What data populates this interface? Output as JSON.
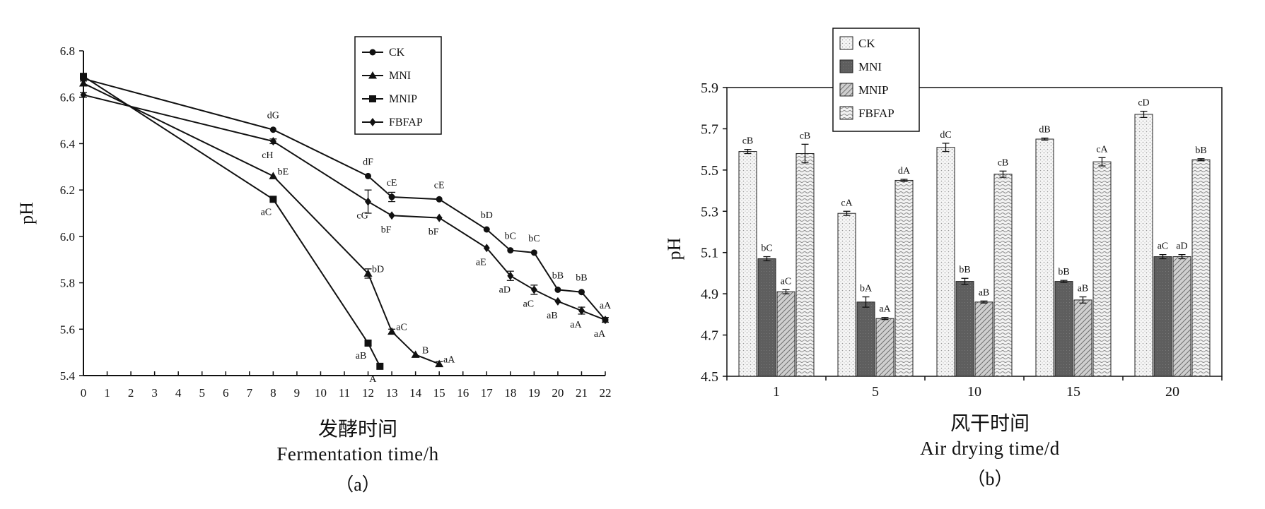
{
  "chart_data": [
    {
      "type": "line",
      "ylabel": "pH",
      "xlabel_zh": "发酵时间",
      "xlabel_en": "Fermentation time/h",
      "sublabel": "（a）",
      "xlim": [
        0,
        22
      ],
      "ylim": [
        5.4,
        6.8
      ],
      "yticks": [
        "5.4",
        "5.6",
        "5.8",
        "6.0",
        "6.2",
        "6.4",
        "6.6",
        "6.8"
      ],
      "xticks": [
        "0",
        "1",
        "2",
        "3",
        "4",
        "5",
        "6",
        "7",
        "8",
        "9",
        "10",
        "11",
        "12",
        "13",
        "14",
        "15",
        "16",
        "17",
        "18",
        "19",
        "20",
        "21",
        "22"
      ],
      "legend_position": "top-center",
      "series": [
        {
          "name": "CK",
          "marker": "circle",
          "x": [
            0,
            8,
            12,
            13,
            15,
            17,
            18,
            19,
            20,
            21,
            22
          ],
          "y": [
            6.68,
            6.46,
            6.26,
            6.17,
            6.16,
            6.03,
            5.94,
            5.93,
            5.77,
            5.76,
            5.64
          ],
          "err": [
            0.01,
            0.005,
            0.005,
            0.02,
            0.005,
            0.005,
            0.005,
            0.005,
            0.005,
            0.005,
            0.01
          ],
          "labels": [
            "",
            "dG",
            "dF",
            "cE",
            "cE",
            "bD",
            "bC",
            "bC",
            "bB",
            "bB",
            "aA"
          ]
        },
        {
          "name": "MNI",
          "marker": "triangle",
          "x": [
            0,
            8,
            12,
            13,
            14,
            15
          ],
          "y": [
            6.66,
            6.26,
            5.84,
            5.59,
            5.49,
            5.45
          ],
          "err": [
            0.01,
            0.005,
            0.02,
            0.01,
            0.005,
            0.01
          ],
          "labels": [
            "",
            "bE",
            "bD",
            "aC",
            "B",
            "aA"
          ]
        },
        {
          "name": "MNIP",
          "marker": "square",
          "x": [
            0,
            8,
            12,
            12.5
          ],
          "y": [
            6.69,
            6.16,
            5.54,
            5.44
          ],
          "err": [
            0.01,
            0.005,
            0.01,
            0.005
          ],
          "labels": [
            "",
            "aC",
            "aB",
            "A"
          ]
        },
        {
          "name": "FBFAP",
          "marker": "diamond",
          "x": [
            0,
            8,
            12,
            13,
            15,
            17,
            18,
            19,
            20,
            21,
            22
          ],
          "y": [
            6.61,
            6.41,
            6.15,
            6.09,
            6.08,
            5.95,
            5.83,
            5.77,
            5.72,
            5.68,
            5.64
          ],
          "err": [
            0.01,
            0.01,
            0.05,
            0.005,
            0.005,
            0.005,
            0.02,
            0.02,
            0.005,
            0.015,
            0.01
          ],
          "labels": [
            "",
            "cH",
            "cG",
            "bF",
            "bF",
            "aE",
            "aD",
            "aC",
            "aB",
            "aA",
            "aA"
          ]
        }
      ]
    },
    {
      "type": "bar",
      "ylabel": "pH",
      "xlabel_zh": "风干时间",
      "xlabel_en": "Air drying time/d",
      "sublabel": "（b）",
      "ylim": [
        4.5,
        5.9
      ],
      "yticks": [
        "4.5",
        "4.7",
        "4.9",
        "5.1",
        "5.3",
        "5.5",
        "5.7",
        "5.9"
      ],
      "categories": [
        "1",
        "5",
        "10",
        "15",
        "20"
      ],
      "legend_position": "top-left",
      "series": [
        {
          "name": "CK",
          "pattern": "dots",
          "values": [
            5.59,
            5.29,
            5.61,
            5.65,
            5.77
          ],
          "err": [
            0.01,
            0.01,
            0.02,
            0.005,
            0.015
          ],
          "labels": [
            "cB",
            "cA",
            "dC",
            "dB",
            "cD"
          ]
        },
        {
          "name": "MNI",
          "pattern": "dark",
          "values": [
            5.07,
            4.86,
            4.96,
            4.96,
            5.08
          ],
          "err": [
            0.01,
            0.025,
            0.015,
            0.005,
            0.01
          ],
          "labels": [
            "bC",
            "bA",
            "bB",
            "bB",
            "aC"
          ]
        },
        {
          "name": "MNIP",
          "pattern": "hatch",
          "values": [
            4.91,
            4.78,
            4.86,
            4.87,
            5.08
          ],
          "err": [
            0.01,
            0.005,
            0.005,
            0.015,
            0.01
          ],
          "labels": [
            "aC",
            "aA",
            "aB",
            "aB",
            "aD"
          ]
        },
        {
          "name": "FBFAP",
          "pattern": "wave",
          "values": [
            5.58,
            5.45,
            5.48,
            5.54,
            5.55
          ],
          "err": [
            0.045,
            0.005,
            0.015,
            0.02,
            0.005
          ],
          "labels": [
            "cB",
            "dA",
            "cB",
            "cA",
            "bB"
          ]
        }
      ]
    }
  ]
}
